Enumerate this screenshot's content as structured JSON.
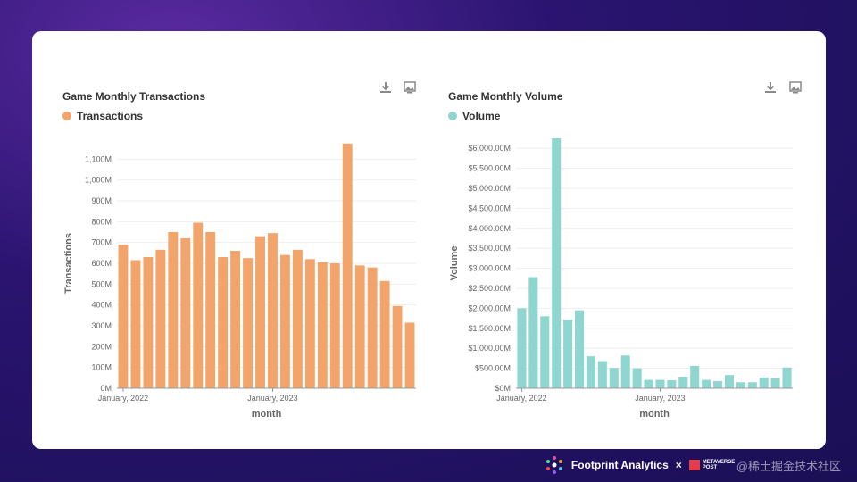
{
  "footer": {
    "brand": "Footprint Analytics",
    "separator": "×",
    "partner": "METAVERSE POST",
    "watermark": "@稀土掘金技术社区"
  },
  "chart_data": [
    {
      "type": "bar",
      "title": "Game Monthly Transactions",
      "xlabel": "month",
      "ylabel": "Transactions",
      "color": "#f2a46a",
      "legend": "top-left",
      "grid": true,
      "ylim": [
        0,
        1200
      ],
      "y_ticks": [
        "0M",
        "100M",
        "200M",
        "300M",
        "400M",
        "500M",
        "600M",
        "700M",
        "800M",
        "900M",
        "1,000M",
        "1,100M"
      ],
      "y_tick_values": [
        0,
        100,
        200,
        300,
        400,
        500,
        600,
        700,
        800,
        900,
        1000,
        1100
      ],
      "x_tick_labels": [
        {
          "index": 0,
          "label": "January, 2022"
        },
        {
          "index": 12,
          "label": "January, 2023"
        }
      ],
      "series": [
        {
          "name": "Transactions",
          "values": [
            690,
            615,
            630,
            665,
            750,
            720,
            795,
            750,
            630,
            660,
            625,
            730,
            745,
            640,
            665,
            620,
            605,
            600,
            1175,
            590,
            580,
            515,
            395,
            315
          ]
        }
      ]
    },
    {
      "type": "bar",
      "title": "Game Monthly Volume",
      "xlabel": "month",
      "ylabel": "Volume",
      "color": "#8fd6d1",
      "legend": "top-left",
      "grid": true,
      "ylim": [
        0,
        6250
      ],
      "y_ticks": [
        "$0M",
        "$500.00M",
        "$1,000.00M",
        "$1,500.00M",
        "$2,000.00M",
        "$2,500.00M",
        "$3,000.00M",
        "$3,500.00M",
        "$4,000.00M",
        "$4,500.00M",
        "$5,000.00M",
        "$5,500.00M",
        "$6,000.00M"
      ],
      "y_tick_values": [
        0,
        500,
        1000,
        1500,
        2000,
        2500,
        3000,
        3500,
        4000,
        4500,
        5000,
        5500,
        6000
      ],
      "x_tick_labels": [
        {
          "index": 0,
          "label": "January, 2022"
        },
        {
          "index": 12,
          "label": "January, 2023"
        }
      ],
      "series": [
        {
          "name": "Volume",
          "values": [
            2000,
            2780,
            1800,
            6250,
            1720,
            1950,
            800,
            680,
            510,
            820,
            500,
            210,
            210,
            200,
            290,
            560,
            210,
            180,
            330,
            150,
            150,
            270,
            250,
            520
          ]
        }
      ]
    }
  ]
}
